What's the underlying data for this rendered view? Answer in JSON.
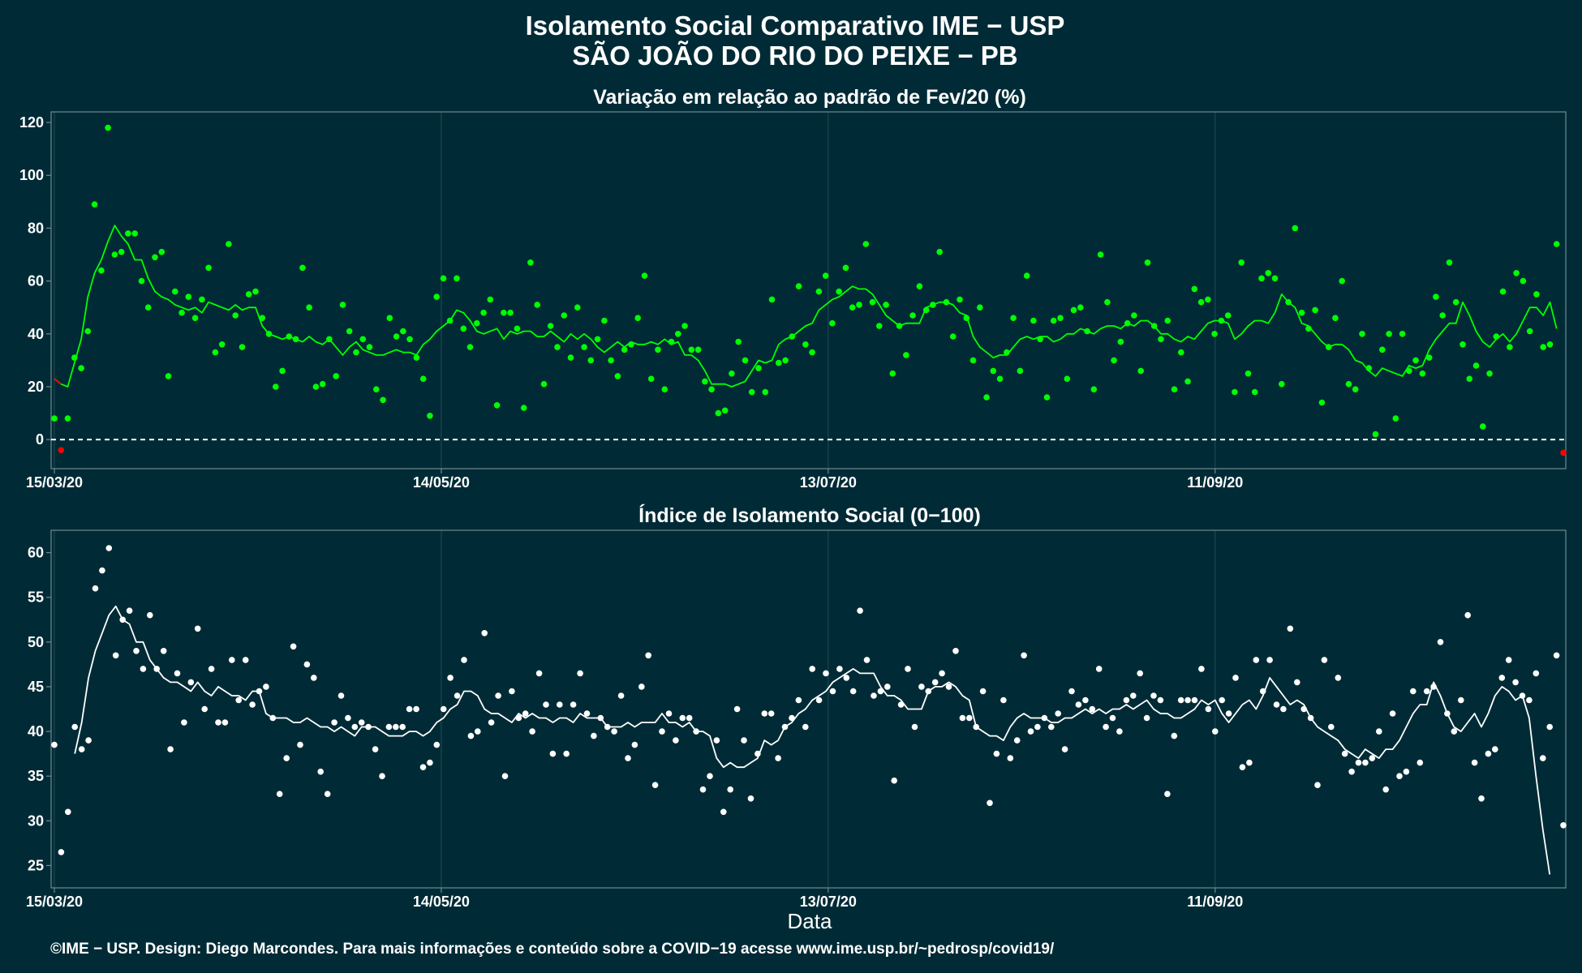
{
  "title": {
    "line1": "Isolamento Social Comparativo IME − USP",
    "line2": "SÃO JOÃO DO RIO DO PEIXE − PB"
  },
  "xlabel": "Data",
  "footer": "©IME − USP. Design: Diego Marcondes. Para mais informações e conteúdo sobre a COVID−19 acesse www.ime.usp.br/~pedrosp/covid19/",
  "colors": {
    "background": "#002b36",
    "panel_border": "#6f8a91",
    "grid": "#1d4650",
    "green": "#00ff00",
    "red": "#ff0000",
    "white": "#ffffff"
  },
  "chart_data": [
    {
      "type": "scatter",
      "title": "Variação em relação ao padrão de Fev/20 (%)",
      "x_start": "15/03/20",
      "x_end": "04/11/20",
      "xticks": [
        "15/03/20",
        "14/05/20",
        "13/07/20",
        "11/09/20"
      ],
      "yticks": [
        0,
        20,
        40,
        60,
        80,
        100,
        120
      ],
      "ylim": [
        -11,
        124
      ],
      "reference_line": 0,
      "points_every_days": 1,
      "values": [
        8,
        -4,
        8,
        31,
        27,
        41,
        89,
        64,
        118,
        70,
        71,
        78,
        78,
        60,
        50,
        69,
        71,
        24,
        56,
        48,
        54,
        46,
        53,
        65,
        33,
        36,
        74,
        47,
        35,
        55,
        56,
        46,
        40,
        20,
        26,
        39,
        38,
        65,
        50,
        20,
        21,
        38,
        24,
        51,
        41,
        33,
        38,
        35,
        19,
        15,
        46,
        39,
        41,
        38,
        31,
        23,
        9,
        54,
        61,
        45,
        61,
        42,
        35,
        44,
        48,
        53,
        13,
        48,
        48,
        42,
        12,
        67,
        51,
        21,
        43,
        35,
        47,
        31,
        50,
        35,
        30,
        38,
        45,
        30,
        24,
        34,
        36,
        46,
        62,
        23,
        34,
        19,
        37,
        40,
        43,
        34,
        34,
        22,
        19,
        10,
        11,
        25,
        37,
        30,
        18,
        27,
        18,
        53,
        29,
        30,
        39,
        58,
        36,
        33,
        56,
        62,
        44,
        56,
        65,
        50,
        51,
        74,
        52,
        43,
        51,
        25,
        43,
        32,
        47,
        58,
        49,
        51,
        71,
        52,
        39,
        53,
        46,
        30,
        50,
        16,
        26,
        23,
        33,
        46,
        26,
        62,
        45,
        38,
        16,
        45,
        46,
        23,
        49,
        50,
        41,
        19,
        70,
        52,
        30,
        37,
        44,
        47,
        26,
        67,
        43,
        38,
        45,
        19,
        33,
        22,
        57,
        52,
        53,
        40,
        45,
        47,
        18,
        67,
        25,
        18,
        61,
        63,
        61,
        21,
        52,
        80,
        48,
        42,
        49,
        14,
        35,
        46,
        60,
        21,
        19,
        40,
        27,
        2,
        34,
        40,
        8,
        40,
        26,
        30,
        25,
        31,
        54,
        47,
        67,
        52,
        36,
        23,
        28,
        5,
        25,
        39,
        56,
        35,
        63,
        60,
        41,
        55,
        35,
        36,
        74,
        -5
      ],
      "moving_average": [
        23,
        21,
        20,
        29,
        38,
        54,
        63,
        68,
        75,
        81,
        77,
        74,
        68,
        68,
        61,
        56,
        54,
        53,
        51,
        50,
        49,
        50,
        48,
        52,
        51,
        50,
        49,
        51,
        49,
        50,
        50,
        43,
        40,
        39,
        38,
        39,
        38,
        37,
        39,
        37,
        36,
        38,
        35,
        32,
        35,
        37,
        34,
        33,
        32,
        32,
        33,
        34,
        33,
        33,
        32,
        36,
        38,
        41,
        43,
        45,
        49,
        48,
        45,
        41,
        40,
        41,
        42,
        38,
        41,
        40,
        41,
        41,
        39,
        39,
        41,
        39,
        37,
        40,
        38,
        40,
        38,
        35,
        33,
        35,
        37,
        35,
        37,
        36,
        36,
        37,
        36,
        38,
        36,
        37,
        32,
        32,
        30,
        26,
        21,
        21,
        21,
        20,
        21,
        22,
        26,
        30,
        29,
        30,
        36,
        38,
        39,
        41,
        43,
        44,
        49,
        51,
        53,
        54,
        56,
        58,
        57,
        57,
        55,
        51,
        47,
        45,
        43,
        44,
        44,
        44,
        50,
        51,
        52,
        52,
        51,
        48,
        47,
        39,
        35,
        33,
        31,
        32,
        32,
        35,
        38,
        39,
        38,
        39,
        39,
        37,
        38,
        40,
        40,
        42,
        41,
        40,
        42,
        43,
        43,
        42,
        44,
        43,
        45,
        45,
        43,
        40,
        40,
        38,
        37,
        39,
        38,
        41,
        44,
        45,
        45,
        44,
        38,
        40,
        43,
        45,
        45,
        44,
        48,
        55,
        52,
        50,
        44,
        43,
        40,
        37,
        35,
        36,
        36,
        34,
        30,
        29,
        26,
        24,
        27,
        26,
        25,
        24,
        28,
        27,
        28,
        34,
        38,
        41,
        44,
        44,
        52,
        47,
        41,
        37,
        35,
        38,
        40,
        37,
        40,
        45,
        50,
        50,
        47,
        52,
        42
      ]
    },
    {
      "type": "scatter",
      "title": "Índice de Isolamento Social (0−100)",
      "x_start": "15/03/20",
      "x_end": "04/11/20",
      "xticks": [
        "15/03/20",
        "14/05/20",
        "13/07/20",
        "11/09/20"
      ],
      "yticks": [
        25,
        30,
        35,
        40,
        45,
        50,
        55,
        60
      ],
      "ylim": [
        22.5,
        62.5
      ],
      "points_every_days": 1,
      "values": [
        38.5,
        26.5,
        31,
        40.5,
        38,
        39,
        56,
        58,
        60.5,
        48.5,
        52.5,
        53.5,
        49,
        47,
        53,
        47,
        49,
        38,
        46.5,
        41,
        45.5,
        51.5,
        42.5,
        47,
        41,
        41,
        48,
        43.5,
        48,
        43,
        44.5,
        45,
        41.5,
        33,
        37,
        49.5,
        38.5,
        47.5,
        46,
        35.5,
        33,
        41,
        44,
        41.5,
        40.5,
        41,
        40.5,
        38,
        35,
        40.5,
        40.5,
        40.5,
        42.5,
        42.5,
        36,
        36.5,
        38.5,
        42.5,
        46,
        44,
        48,
        39.5,
        40,
        51,
        41,
        44,
        35,
        44.5,
        41.5,
        42,
        40,
        46.5,
        43,
        37.5,
        43,
        37.5,
        43,
        46.5,
        42,
        39.5,
        41.5,
        40.5,
        40,
        44,
        37,
        38.5,
        45,
        48.5,
        34,
        40,
        42,
        39,
        41.5,
        41.5,
        40,
        33.5,
        35,
        39,
        31,
        33.5,
        42.5,
        39,
        32.5,
        37.5,
        42,
        42,
        37,
        40.5,
        41.5,
        43.5,
        40.5,
        47,
        43.5,
        46.5,
        44.5,
        47,
        46,
        44.5,
        53.5,
        48,
        44,
        44.5,
        45,
        34.5,
        43,
        47,
        40.5,
        45,
        44.5,
        45.5,
        46.5,
        45,
        49,
        41.5,
        41.5,
        40.5,
        44.5,
        32,
        37.5,
        43.5,
        37,
        39,
        48.5,
        40,
        40.5,
        41.5,
        40.5,
        42,
        38,
        44.5,
        43,
        43.5,
        42.5,
        47,
        40.5,
        41.5,
        40,
        43.5,
        44,
        46.5,
        41.5,
        44,
        43.5,
        33,
        39.5,
        43.5,
        43.5,
        43.5,
        47,
        42.5,
        40,
        43.5,
        42,
        46,
        36,
        36.5,
        48,
        44.5,
        48,
        43,
        42.5,
        51.5,
        45.5,
        42.5,
        41.5,
        34,
        48,
        40.5,
        46,
        37.5,
        35.5,
        36.5,
        36.5,
        37,
        40,
        33.5,
        42,
        35,
        35.5,
        44.5,
        36.5,
        44.5,
        45,
        50,
        42,
        40,
        43.5,
        53,
        36.5,
        32.5,
        37.5,
        38,
        46,
        48,
        45.5,
        44,
        43.5,
        46.5,
        37,
        40.5,
        48.5,
        29.5
      ],
      "moving_average": [
        null,
        null,
        null,
        37.5,
        41,
        46,
        49,
        51,
        53,
        54,
        52.5,
        52,
        50,
        50,
        48,
        47,
        46,
        45.5,
        45.5,
        45,
        44.5,
        45.5,
        44.5,
        44,
        45,
        44.5,
        44,
        44,
        43.5,
        44.5,
        44.5,
        42,
        41.5,
        41.5,
        41.5,
        41,
        41,
        41.5,
        41,
        40.5,
        40.5,
        40,
        40.5,
        40,
        39.5,
        40.5,
        40.5,
        40.5,
        40,
        39.5,
        39.5,
        39.5,
        40,
        40,
        39.5,
        40,
        41,
        41.5,
        42.5,
        43,
        44.5,
        44.5,
        44,
        42.5,
        42,
        42,
        41.5,
        41,
        42,
        41.5,
        42,
        41.5,
        41.5,
        41,
        41.5,
        41.5,
        41,
        42,
        41.5,
        41.5,
        41.5,
        40.5,
        40.5,
        40.5,
        41,
        40.5,
        41,
        41,
        41,
        42,
        41,
        41,
        40.5,
        41,
        40,
        40,
        39.5,
        37,
        36,
        36.5,
        36,
        36,
        36.5,
        37,
        39,
        38.5,
        39,
        40.5,
        41,
        42,
        42.5,
        43.5,
        44,
        44.5,
        45.5,
        46,
        46.5,
        47,
        46.5,
        46.5,
        46.5,
        45,
        44,
        44,
        43.5,
        42.5,
        42.5,
        42.5,
        44.5,
        45,
        45,
        45.5,
        45,
        44,
        43.5,
        40.5,
        40,
        39.5,
        39.5,
        39,
        40.5,
        41.5,
        42,
        41.5,
        41.5,
        41.5,
        41,
        41,
        41.5,
        41.5,
        42,
        42.5,
        42,
        42.5,
        42,
        42.5,
        42.5,
        43,
        42.5,
        43,
        43.5,
        42.5,
        42,
        42,
        41.5,
        41.5,
        42,
        42.5,
        43.5,
        43,
        43.5,
        42,
        41,
        42,
        43,
        43.5,
        42.5,
        44,
        46,
        45,
        44,
        43,
        43.5,
        43,
        41.5,
        40.5,
        40,
        39.5,
        39,
        38,
        37.5,
        37,
        38,
        37.5,
        37,
        38,
        38,
        39,
        40.5,
        42,
        43,
        43,
        45.5,
        44,
        42,
        40.5,
        40,
        41,
        42,
        40.5,
        42,
        44,
        45,
        44.5,
        43.5,
        44,
        41.5,
        35,
        29,
        24
      ]
    }
  ]
}
